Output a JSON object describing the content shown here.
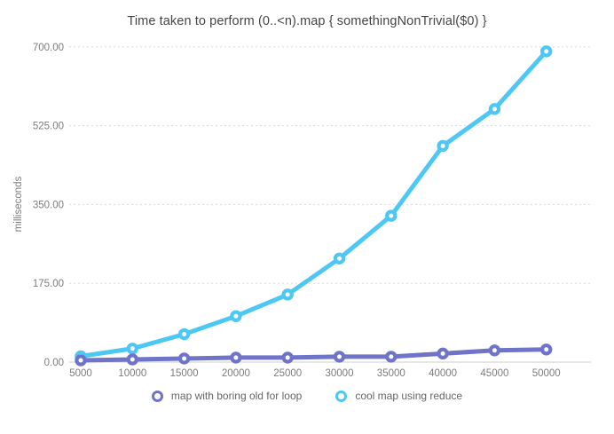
{
  "chart_data": {
    "type": "line",
    "title": "Time taken to perform (0..<n).map { somethingNonTrivial($0) }",
    "ylabel": "milliseconds",
    "categories": [
      5000,
      10000,
      15000,
      20000,
      25000,
      30000,
      35000,
      40000,
      45000,
      50000
    ],
    "yticks": [
      0,
      175,
      350,
      525,
      700
    ],
    "ytick_labels": [
      "0.00",
      "175.00",
      "350.00",
      "525.00",
      "700.00"
    ],
    "ylim": [
      0,
      700
    ],
    "grid": "horizontal-dashed",
    "legend_position": "bottom",
    "series": [
      {
        "name": "map with boring old for loop",
        "color": "#6f74c9",
        "marker": "ring",
        "values": [
          4,
          6,
          8,
          10,
          10,
          12,
          12,
          19,
          26,
          28
        ]
      },
      {
        "name": "cool map using reduce",
        "color": "#4dc7f4",
        "marker": "ring",
        "values": [
          13,
          30,
          62,
          102,
          150,
          230,
          325,
          480,
          562,
          690
        ]
      }
    ]
  },
  "colors": {
    "background": "#ffffff",
    "title_text": "#454545",
    "tick_text": "#7c7c7c",
    "legend_text": "#666666",
    "gridline": "#dcdcdc",
    "baseline": "#cccccc"
  }
}
